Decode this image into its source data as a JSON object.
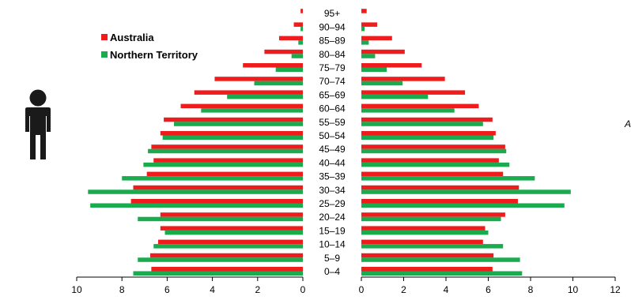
{
  "chart_data": {
    "type": "bar",
    "orientation": "horizontal",
    "layout": "population-pyramid",
    "categories": [
      "0–4",
      "5–9",
      "10–14",
      "15–19",
      "20–24",
      "25–29",
      "30–34",
      "35–39",
      "40–44",
      "45–49",
      "50–54",
      "55–59",
      "60–64",
      "65–69",
      "70–74",
      "75–79",
      "80–84",
      "85–89",
      "90–94",
      "95+"
    ],
    "series": [
      {
        "name": "Australia",
        "color": "#ee1c1c",
        "left": [
          6.7,
          6.75,
          6.4,
          6.3,
          6.3,
          7.6,
          7.5,
          6.9,
          6.6,
          6.7,
          6.3,
          6.15,
          5.4,
          4.8,
          3.9,
          2.65,
          1.7,
          1.05,
          0.4,
          0.1
        ],
        "right": [
          6.2,
          6.25,
          5.75,
          5.85,
          6.8,
          7.4,
          7.45,
          6.7,
          6.5,
          6.8,
          6.35,
          6.2,
          5.55,
          4.9,
          3.95,
          2.85,
          2.05,
          1.45,
          0.75,
          0.25
        ]
      },
      {
        "name": "Northern Territory",
        "color": "#1aab4f",
        "left": [
          7.5,
          7.3,
          6.6,
          6.1,
          7.3,
          9.4,
          9.5,
          8.0,
          7.05,
          6.85,
          6.2,
          5.7,
          4.5,
          3.35,
          2.15,
          1.2,
          0.5,
          0.2,
          0.1,
          0.0
        ],
        "right": [
          7.6,
          7.5,
          6.7,
          6.0,
          6.6,
          9.6,
          9.9,
          8.2,
          7.0,
          6.85,
          6.25,
          5.75,
          4.4,
          3.15,
          1.95,
          1.2,
          0.65,
          0.35,
          0.15,
          0.0
        ]
      }
    ],
    "left_axis": {
      "ticks": [
        "10",
        "8",
        "6",
        "4",
        "2",
        "0"
      ],
      "range": [
        0,
        10
      ]
    },
    "right_axis": {
      "ticks": [
        "0",
        "2",
        "4",
        "6",
        "8",
        "10",
        "12"
      ],
      "range": [
        0,
        12
      ]
    },
    "legend_position": "top-left",
    "grid": false
  },
  "legend": [
    {
      "label": "Australia",
      "color": "#ee1c1c"
    },
    {
      "label": "Northern Territory",
      "color": "#1aab4f"
    }
  ],
  "icons": {
    "left_figure": "male-person-icon"
  },
  "edge_text": "A"
}
